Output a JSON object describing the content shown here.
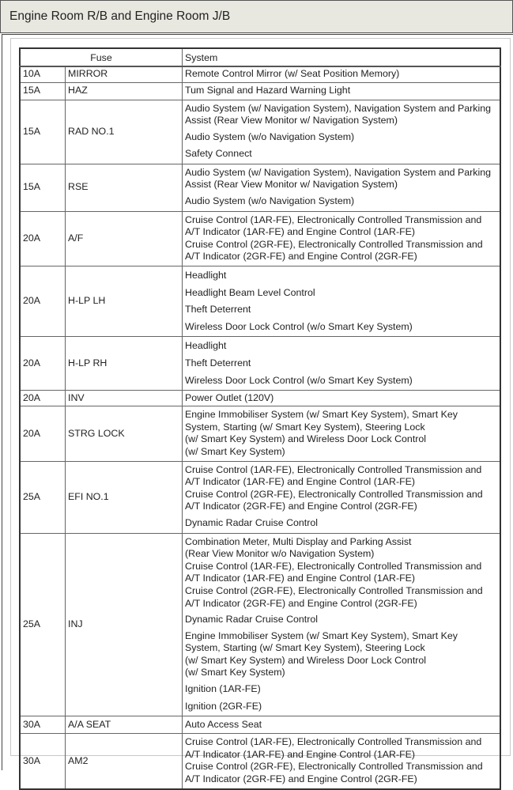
{
  "title": "Engine Room R/B and Engine Room J/B",
  "table": {
    "headers": {
      "fuse": "Fuse",
      "system": "System"
    },
    "rows": [
      {
        "amp": "10A",
        "name": "MIRROR",
        "system": [
          [
            "Remote Control Mirror (w/ Seat Position Memory)"
          ]
        ]
      },
      {
        "amp": "15A",
        "name": "HAZ",
        "system": [
          [
            "Tum Signal and Hazard Warning Light"
          ]
        ]
      },
      {
        "amp": "15A",
        "name": "RAD NO.1",
        "system": [
          [
            "Audio System (w/ Navigation System), Navigation System and Parking",
            "Assist (Rear View Monitor w/ Navigation System)"
          ],
          [
            "Audio System (w/o Navigation System)"
          ],
          [
            "Safety Connect"
          ]
        ]
      },
      {
        "amp": "15A",
        "name": "RSE",
        "system": [
          [
            "Audio System (w/ Navigation System), Navigation System and Parking",
            "Assist (Rear View Monitor w/ Navigation System)"
          ],
          [
            "Audio System (w/o Navigation System)"
          ]
        ]
      },
      {
        "amp": "20A",
        "name": "A/F",
        "system": [
          [
            "Cruise Control (1AR-FE), Electronically Controlled Transmission and",
            "A/T Indicator (1AR-FE) and Engine Control (1AR-FE)",
            "Cruise Control (2GR-FE), Electronically Controlled Transmission and",
            "A/T Indicator (2GR-FE) and Engine Control (2GR-FE)"
          ]
        ]
      },
      {
        "amp": "20A",
        "name": "H-LP LH",
        "system": [
          [
            "Headlight"
          ],
          [
            "Headlight Beam Level Control"
          ],
          [
            "Theft Deterrent"
          ],
          [
            "Wireless Door Lock Control (w/o Smart Key System)"
          ]
        ]
      },
      {
        "amp": "20A",
        "name": "H-LP RH",
        "system": [
          [
            "Headlight"
          ],
          [
            "Theft Deterrent"
          ],
          [
            "Wireless Door Lock Control (w/o Smart Key System)"
          ]
        ]
      },
      {
        "amp": "20A",
        "name": "INV",
        "system": [
          [
            "Power Outlet (120V)"
          ]
        ]
      },
      {
        "amp": "20A",
        "name": "STRG LOCK",
        "system": [
          [
            "Engine Immobiliser System (w/ Smart Key System), Smart Key",
            "System, Starting (w/ Smart Key System), Steering Lock",
            "(w/ Smart Key System) and Wireless Door Lock Control",
            "(w/ Smart Key System)"
          ]
        ]
      },
      {
        "amp": "25A",
        "name": "EFI NO.1",
        "system": [
          [
            "Cruise Control (1AR-FE), Electronically Controlled Transmission and",
            "A/T Indicator (1AR-FE) and Engine Control (1AR-FE)",
            "Cruise Control (2GR-FE), Electronically Controlled Transmission and",
            "A/T Indicator (2GR-FE) and Engine Control (2GR-FE)"
          ],
          [
            "Dynamic Radar Cruise Control"
          ]
        ]
      },
      {
        "amp": "25A",
        "name": "INJ",
        "system": [
          [
            "Combination Meter, Multi Display and Parking Assist",
            "(Rear View Monitor w/o Navigation System)",
            "Cruise Control (1AR-FE), Electronically Controlled Transmission and",
            "A/T Indicator (1AR-FE) and Engine Control (1AR-FE)",
            "Cruise Control (2GR-FE), Electronically Controlled Transmission and",
            "A/T Indicator (2GR-FE) and Engine Control (2GR-FE)"
          ],
          [
            "Dynamic Radar Cruise Control"
          ],
          [
            "Engine Immobiliser System (w/ Smart Key System), Smart Key",
            "System, Starting (w/ Smart Key System), Steering Lock",
            "(w/ Smart Key System) and Wireless Door Lock Control",
            "(w/ Smart Key System)"
          ],
          [
            "Ignition (1AR-FE)"
          ],
          [
            "Ignition (2GR-FE)"
          ]
        ]
      },
      {
        "amp": "30A",
        "name": "A/A SEAT",
        "system": [
          [
            "Auto Access Seat"
          ]
        ]
      },
      {
        "amp": "30A",
        "name": "AM2",
        "system": [
          [
            "Cruise Control (1AR-FE), Electronically Controlled Transmission and",
            "A/T Indicator (1AR-FE) and Engine Control (1AR-FE)",
            "Cruise Control (2GR-FE), Electronically Controlled Transmission and",
            "A/T Indicator (2GR-FE) and Engine Control (2GR-FE)"
          ]
        ]
      }
    ]
  }
}
